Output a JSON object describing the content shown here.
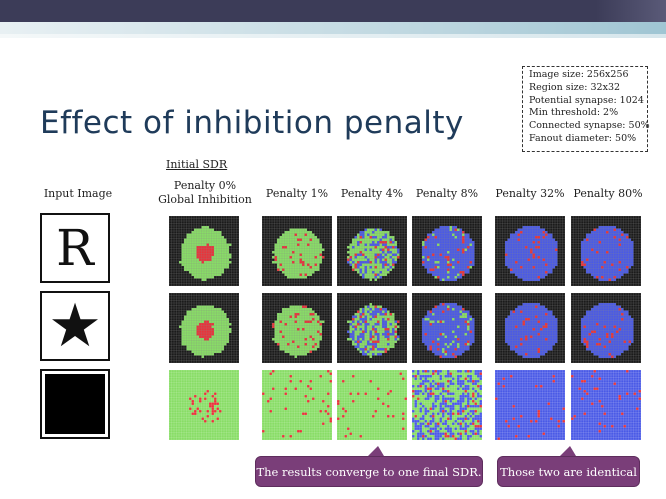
{
  "title": "Effect of inhibition penalty",
  "params": [
    "Image size: 256x256",
    "Region size: 32x32",
    "Potential synapse: 1024",
    "Min threshold: 2%",
    "Connected synapse: 50%",
    "Fanout diameter: 50%"
  ],
  "initial_sdr_label": "Initial SDR",
  "headers": {
    "input": "Input Image",
    "penalty0_line1": "Penalty 0%",
    "penalty0_line2": "Global Inhibition",
    "p1": "Penalty 1%",
    "p4": "Penalty 4%",
    "p8": "Penalty 8%",
    "p32": "Penalty 32%",
    "p80": "Penalty 80%"
  },
  "inputs": {
    "r_letter": "R",
    "star_glyph": "★"
  },
  "callouts": {
    "converge": "The results converge to one final SDR.",
    "identical": "Those two are identical"
  },
  "colors": {
    "green": "#88dd66",
    "red": "#e8343a",
    "blue": "#4a5ae6",
    "dark": "#1b1b1b",
    "callout": "#7a3e79"
  }
}
